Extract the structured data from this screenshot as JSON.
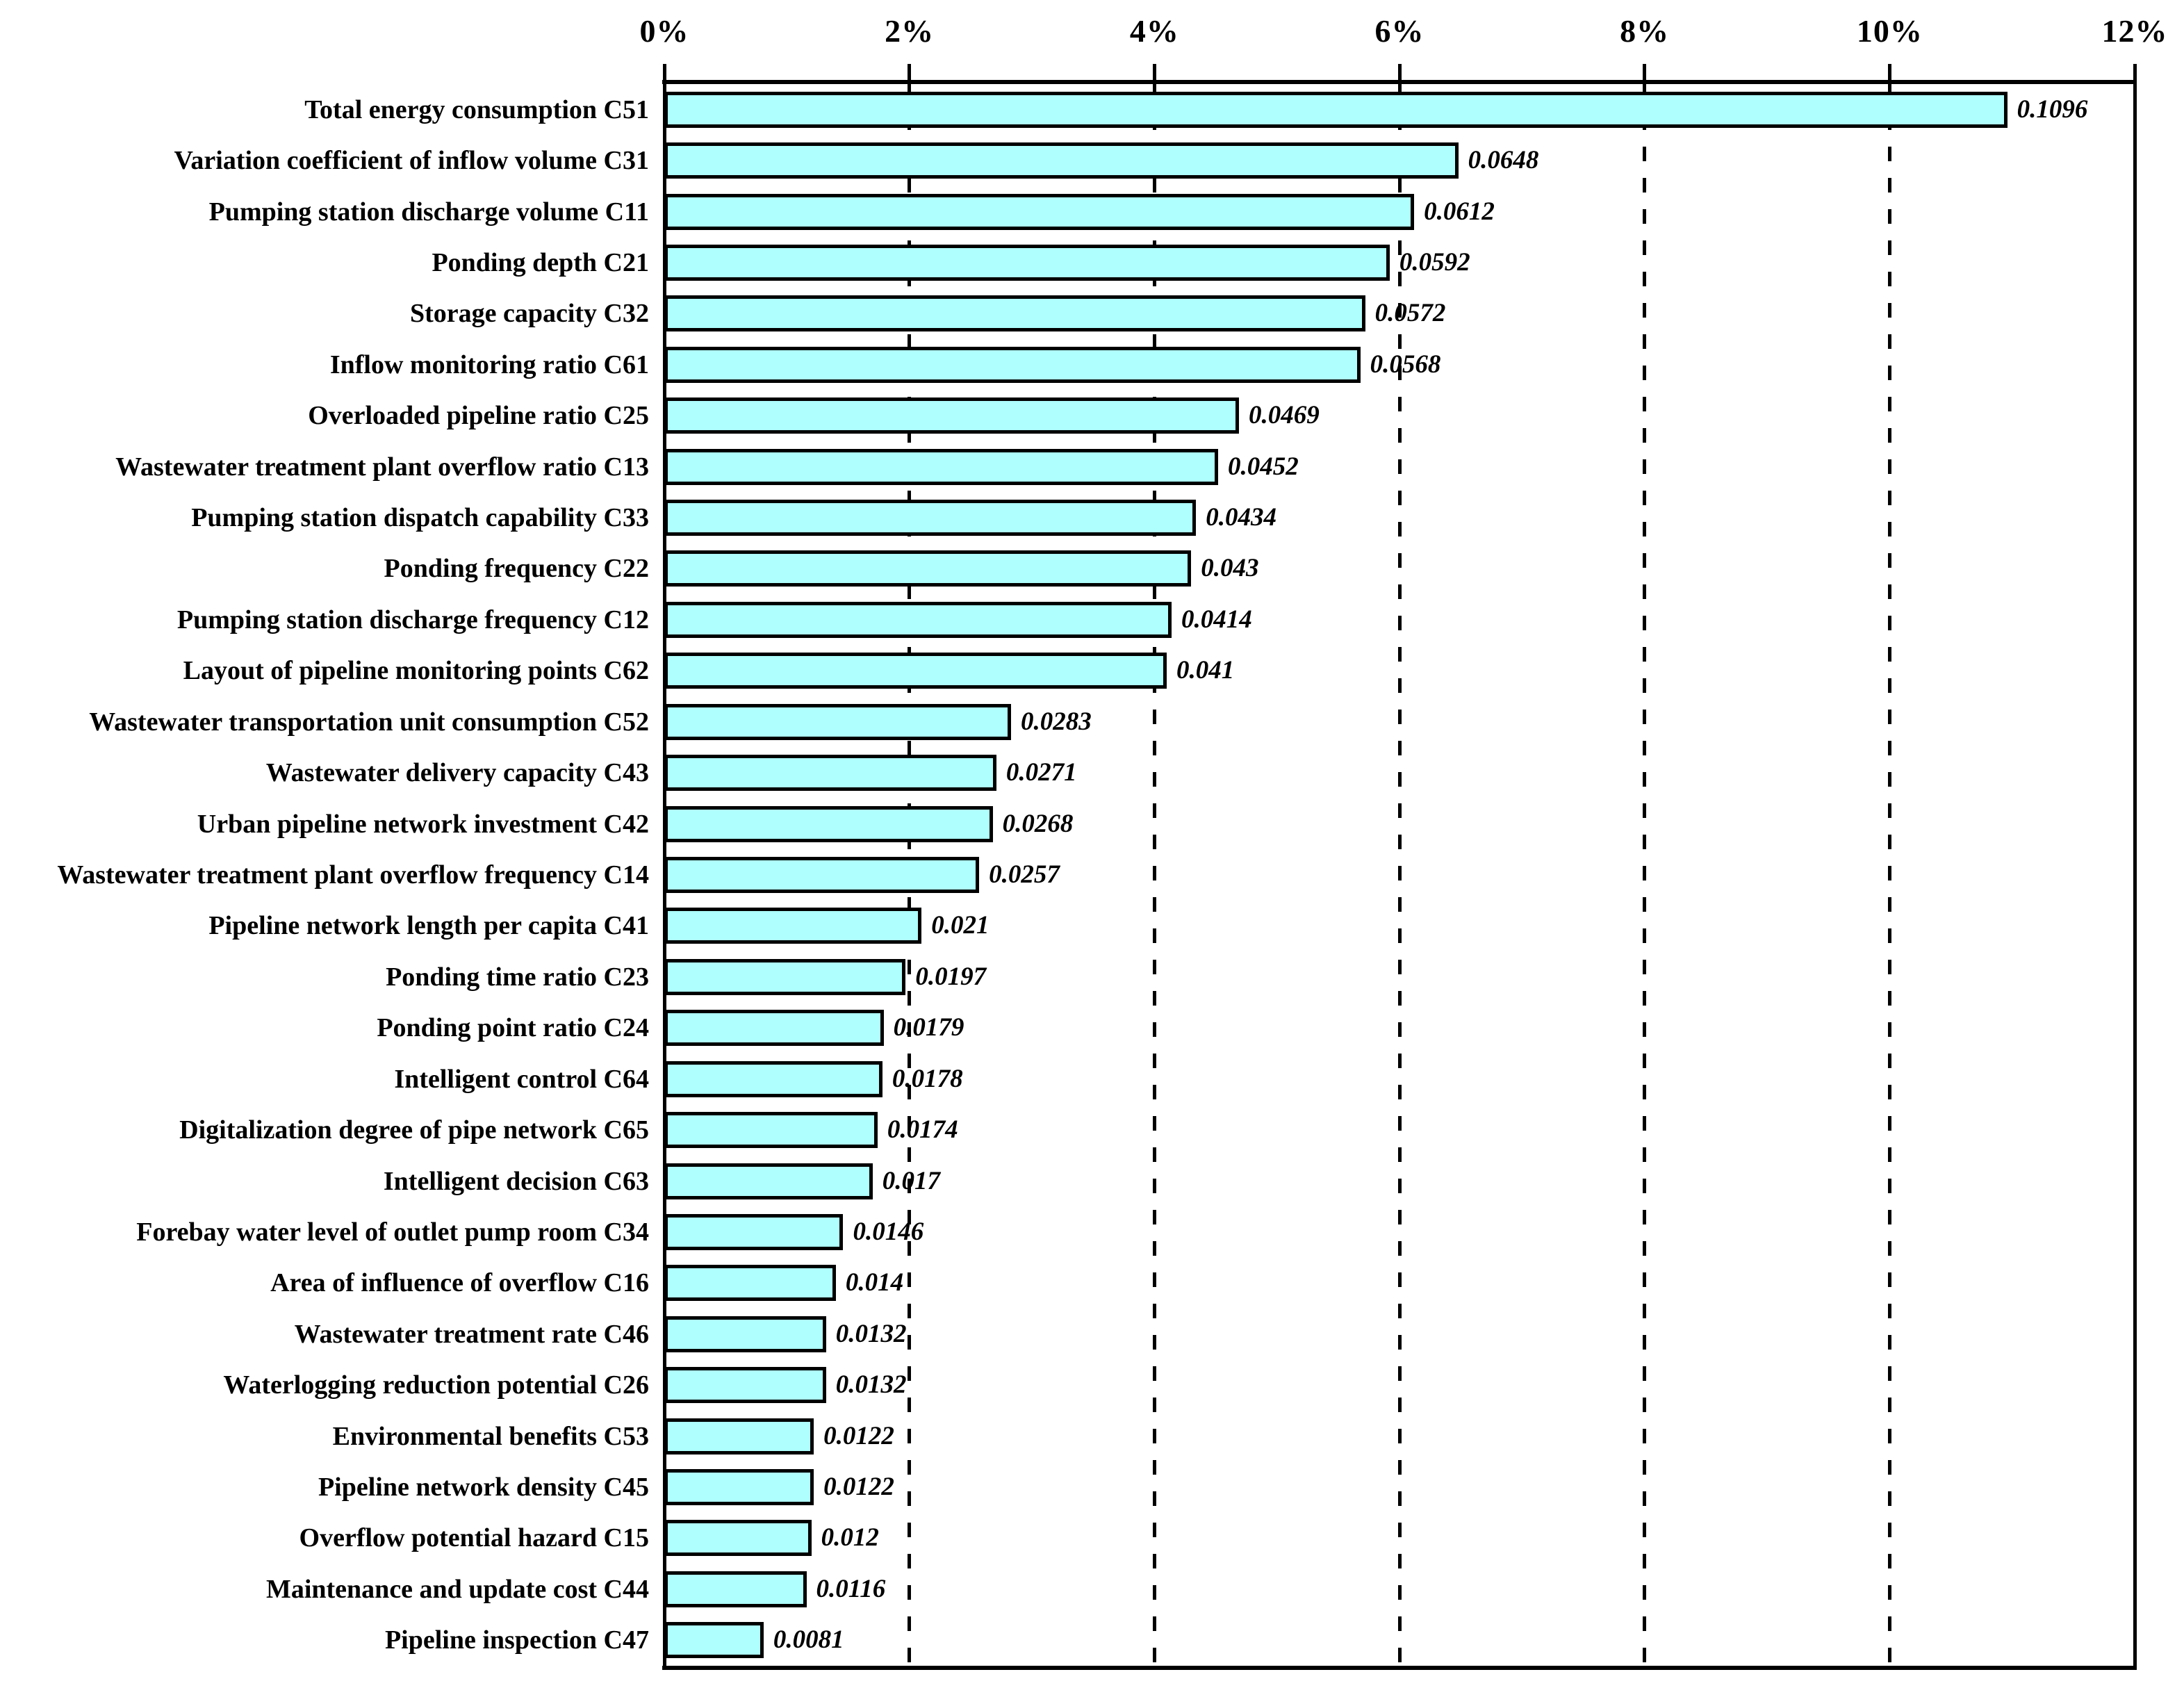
{
  "chart_data": {
    "type": "bar",
    "orientation": "horizontal",
    "title": "",
    "x_axis": {
      "position": "top",
      "tick_labels": [
        "0%",
        "2%",
        "4%",
        "6%",
        "8%",
        "10%",
        "12%"
      ],
      "tick_values_percent": [
        0,
        2,
        4,
        6,
        8,
        10,
        12
      ],
      "range_percent": [
        0,
        12
      ],
      "gridlines": "dashed-vertical-at-interior-ticks"
    },
    "categories": [
      "Total energy consumption C51",
      "Variation coefficient of inflow volume C31",
      "Pumping station discharge volume C11",
      "Ponding depth C21",
      "Storage capacity C32",
      "Inflow monitoring ratio C61",
      "Overloaded pipeline ratio C25",
      "Wastewater treatment plant overflow ratio C13",
      "Pumping station dispatch capability C33",
      "Ponding frequency C22",
      "Pumping station discharge frequency C12",
      "Layout of pipeline monitoring points C62",
      "Wastewater transportation unit consumption C52",
      "Wastewater delivery capacity C43",
      "Urban pipeline network investment C42",
      "Wastewater treatment plant overflow frequency C14",
      "Pipeline network length per capita C41",
      "Ponding time ratio C23",
      "Ponding point ratio C24",
      "Intelligent control C64",
      "Digitalization degree of pipe network C65",
      "Intelligent decision C63",
      "Forebay water level of outlet pump room C34",
      "Area of influence of overflow C16",
      "Wastewater treatment rate C46",
      "Waterlogging reduction potential C26",
      "Environmental benefits C53",
      "Pipeline network density C45",
      "Overflow potential hazard C15",
      "Maintenance and update cost C44",
      "Pipeline inspection C47"
    ],
    "values": [
      0.1096,
      0.0648,
      0.0612,
      0.0592,
      0.0572,
      0.0568,
      0.0469,
      0.0452,
      0.0434,
      0.043,
      0.0414,
      0.041,
      0.0283,
      0.0271,
      0.0268,
      0.0257,
      0.021,
      0.0197,
      0.0179,
      0.0178,
      0.0174,
      0.017,
      0.0146,
      0.014,
      0.0132,
      0.0132,
      0.0122,
      0.0122,
      0.012,
      0.0116,
      0.0081
    ],
    "colors": {
      "bar_fill": "#aefffd",
      "bar_border": "#000000",
      "axis": "#000000",
      "text": "#000000",
      "background": "#ffffff"
    }
  }
}
